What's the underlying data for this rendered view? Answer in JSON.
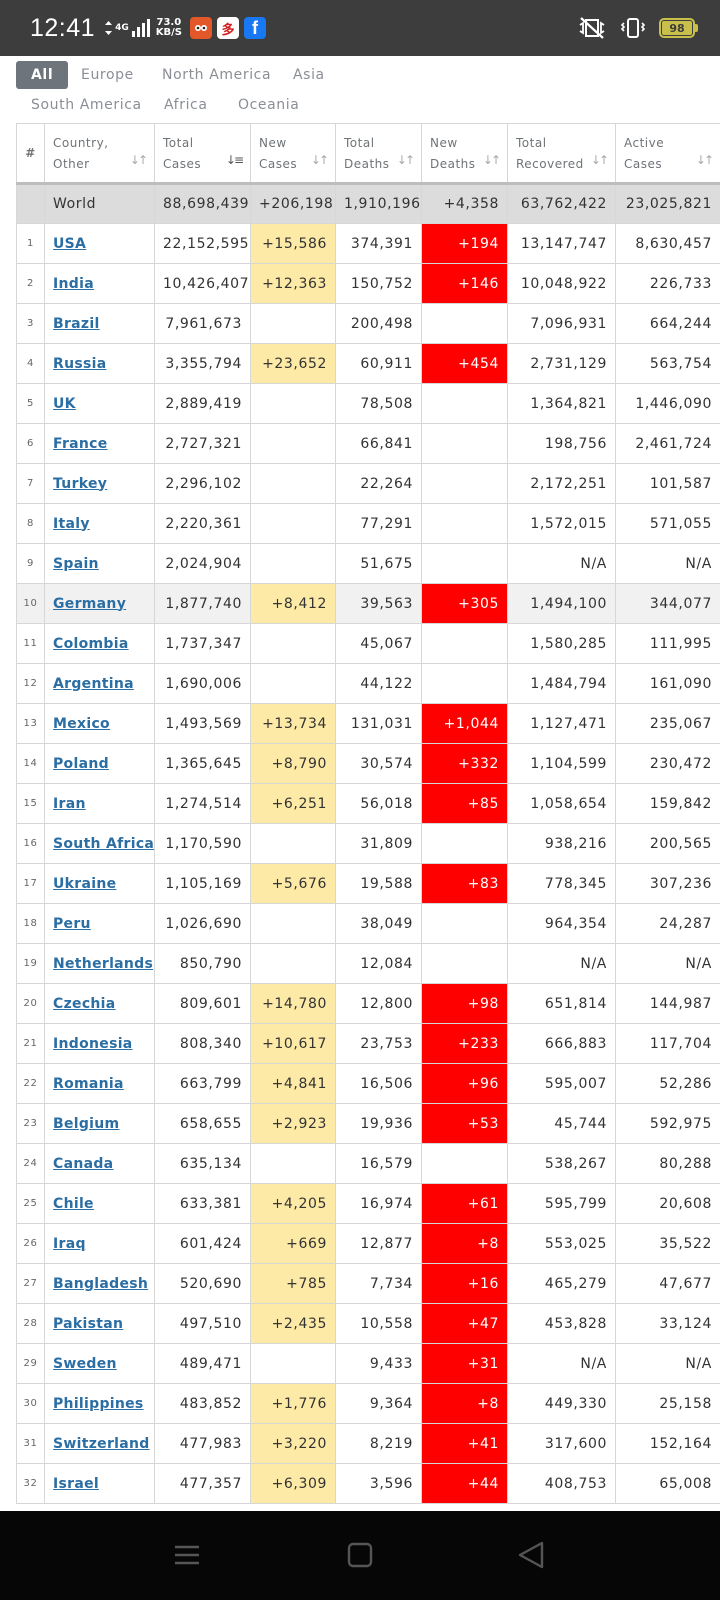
{
  "status_bar": {
    "time": "12:41",
    "network": "4G",
    "speed_value": "73.0",
    "speed_unit": "KB/S",
    "battery": "98",
    "fb_glyph": "f",
    "app2_glyph": "多"
  },
  "tabs": [
    {
      "label": "All",
      "active": true
    },
    {
      "label": "Europe",
      "active": false
    },
    {
      "label": "North America",
      "active": false
    },
    {
      "label": "Asia",
      "active": false
    },
    {
      "label": "South America",
      "active": false
    },
    {
      "label": "Africa",
      "active": false
    },
    {
      "label": "Oceania",
      "active": false
    }
  ],
  "headers": {
    "num": "#",
    "country": [
      "Country,",
      "Other"
    ],
    "total_cases": [
      "Total",
      "Cases"
    ],
    "new_cases": [
      "New",
      "Cases"
    ],
    "total_deaths": [
      "Total",
      "Deaths"
    ],
    "new_deaths": [
      "New",
      "Deaths"
    ],
    "total_recovered": [
      "Total",
      "Recovered"
    ],
    "active_cases": [
      "Active",
      "Cases"
    ]
  },
  "world": {
    "name": "World",
    "total_cases": "88,698,439",
    "new_cases": "+206,198",
    "total_deaths": "1,910,196",
    "new_deaths": "+4,358",
    "total_recovered": "63,762,422",
    "active_cases": "23,025,821"
  },
  "rows": [
    [
      "1",
      "USA",
      "22,152,595",
      "+15,586",
      "374,391",
      "+194",
      "13,147,747",
      "8,630,457"
    ],
    [
      "2",
      "India",
      "10,426,407",
      "+12,363",
      "150,752",
      "+146",
      "10,048,922",
      "226,733"
    ],
    [
      "3",
      "Brazil",
      "7,961,673",
      "",
      "200,498",
      "",
      "7,096,931",
      "664,244"
    ],
    [
      "4",
      "Russia",
      "3,355,794",
      "+23,652",
      "60,911",
      "+454",
      "2,731,129",
      "563,754"
    ],
    [
      "5",
      "UK",
      "2,889,419",
      "",
      "78,508",
      "",
      "1,364,821",
      "1,446,090"
    ],
    [
      "6",
      "France",
      "2,727,321",
      "",
      "66,841",
      "",
      "198,756",
      "2,461,724"
    ],
    [
      "7",
      "Turkey",
      "2,296,102",
      "",
      "22,264",
      "",
      "2,172,251",
      "101,587"
    ],
    [
      "8",
      "Italy",
      "2,220,361",
      "",
      "77,291",
      "",
      "1,572,015",
      "571,055"
    ],
    [
      "9",
      "Spain",
      "2,024,904",
      "",
      "51,675",
      "",
      "N/A",
      "N/A"
    ],
    [
      "10",
      "Germany",
      "1,877,740",
      "+8,412",
      "39,563",
      "+305",
      "1,494,100",
      "344,077"
    ],
    [
      "11",
      "Colombia",
      "1,737,347",
      "",
      "45,067",
      "",
      "1,580,285",
      "111,995"
    ],
    [
      "12",
      "Argentina",
      "1,690,006",
      "",
      "44,122",
      "",
      "1,484,794",
      "161,090"
    ],
    [
      "13",
      "Mexico",
      "1,493,569",
      "+13,734",
      "131,031",
      "+1,044",
      "1,127,471",
      "235,067"
    ],
    [
      "14",
      "Poland",
      "1,365,645",
      "+8,790",
      "30,574",
      "+332",
      "1,104,599",
      "230,472"
    ],
    [
      "15",
      "Iran",
      "1,274,514",
      "+6,251",
      "56,018",
      "+85",
      "1,058,654",
      "159,842"
    ],
    [
      "16",
      "South Africa",
      "1,170,590",
      "",
      "31,809",
      "",
      "938,216",
      "200,565"
    ],
    [
      "17",
      "Ukraine",
      "1,105,169",
      "+5,676",
      "19,588",
      "+83",
      "778,345",
      "307,236"
    ],
    [
      "18",
      "Peru",
      "1,026,690",
      "",
      "38,049",
      "",
      "964,354",
      "24,287"
    ],
    [
      "19",
      "Netherlands",
      "850,790",
      "",
      "12,084",
      "",
      "N/A",
      "N/A"
    ],
    [
      "20",
      "Czechia",
      "809,601",
      "+14,780",
      "12,800",
      "+98",
      "651,814",
      "144,987"
    ],
    [
      "21",
      "Indonesia",
      "808,340",
      "+10,617",
      "23,753",
      "+233",
      "666,883",
      "117,704"
    ],
    [
      "22",
      "Romania",
      "663,799",
      "+4,841",
      "16,506",
      "+96",
      "595,007",
      "52,286"
    ],
    [
      "23",
      "Belgium",
      "658,655",
      "+2,923",
      "19,936",
      "+53",
      "45,744",
      "592,975"
    ],
    [
      "24",
      "Canada",
      "635,134",
      "",
      "16,579",
      "",
      "538,267",
      "80,288"
    ],
    [
      "25",
      "Chile",
      "633,381",
      "+4,205",
      "16,974",
      "+61",
      "595,799",
      "20,608"
    ],
    [
      "26",
      "Iraq",
      "601,424",
      "+669",
      "12,877",
      "+8",
      "553,025",
      "35,522"
    ],
    [
      "27",
      "Bangladesh",
      "520,690",
      "+785",
      "7,734",
      "+16",
      "465,279",
      "47,677"
    ],
    [
      "28",
      "Pakistan",
      "497,510",
      "+2,435",
      "10,558",
      "+47",
      "453,828",
      "33,124"
    ],
    [
      "29",
      "Sweden",
      "489,471",
      "",
      "9,433",
      "+31",
      "N/A",
      "N/A"
    ],
    [
      "30",
      "Philippines",
      "483,852",
      "+1,776",
      "9,364",
      "+8",
      "449,330",
      "25,158"
    ],
    [
      "31",
      "Switzerland",
      "477,983",
      "+3,220",
      "8,219",
      "+41",
      "317,600",
      "152,164"
    ],
    [
      "32",
      "Israel",
      "477,357",
      "+6,309",
      "3,596",
      "+44",
      "408,753",
      "65,008"
    ]
  ],
  "highlighted_row": "10",
  "colors": {
    "new_cases_bg": "#fdeaa7",
    "new_deaths_bg": "#ff0000",
    "link": "#2b6ea4",
    "tab_active": "#6d747b"
  }
}
